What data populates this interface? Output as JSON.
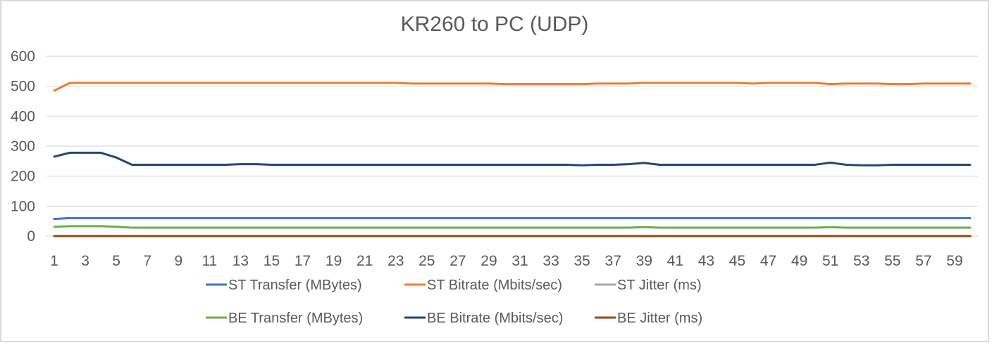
{
  "chart_data": {
    "type": "line",
    "title": "KR260 to PC (UDP)",
    "xlabel": "",
    "ylabel": "",
    "ylim": [
      0,
      600
    ],
    "yticks": [
      "0",
      "100",
      "200",
      "300",
      "400",
      "500",
      "600"
    ],
    "xticks": [
      "1",
      "3",
      "5",
      "7",
      "9",
      "11",
      "13",
      "15",
      "17",
      "19",
      "21",
      "23",
      "25",
      "27",
      "29",
      "31",
      "33",
      "35",
      "37",
      "39",
      "41",
      "43",
      "45",
      "47",
      "49",
      "51",
      "53",
      "55",
      "57",
      "59"
    ],
    "x": [
      1,
      2,
      3,
      4,
      5,
      6,
      7,
      8,
      9,
      10,
      11,
      12,
      13,
      14,
      15,
      16,
      17,
      18,
      19,
      20,
      21,
      22,
      23,
      24,
      25,
      26,
      27,
      28,
      29,
      30,
      31,
      32,
      33,
      34,
      35,
      36,
      37,
      38,
      39,
      40,
      41,
      42,
      43,
      44,
      45,
      46,
      47,
      48,
      49,
      50,
      51,
      52,
      53,
      54,
      55,
      56,
      57,
      58,
      59,
      60
    ],
    "grid": "horizontal",
    "legend_position": "bottom",
    "series": [
      {
        "name": "ST Transfer (MBytes)",
        "color": "#4472c4",
        "values": [
          57,
          60,
          60,
          60,
          60,
          60,
          60,
          60,
          60,
          60,
          60,
          60,
          60,
          60,
          60,
          60,
          60,
          60,
          60,
          60,
          60,
          60,
          60,
          60,
          60,
          60,
          60,
          60,
          60,
          60,
          60,
          60,
          60,
          60,
          60,
          60,
          60,
          60,
          60,
          60,
          60,
          60,
          60,
          60,
          60,
          60,
          60,
          60,
          60,
          60,
          60,
          60,
          60,
          60,
          60,
          60,
          60,
          60,
          60,
          60
        ]
      },
      {
        "name": "ST Bitrate (Mbits/sec)",
        "color": "#ed7d31",
        "values": [
          485,
          511,
          511,
          511,
          511,
          511,
          511,
          511,
          511,
          511,
          511,
          511,
          511,
          511,
          511,
          511,
          511,
          511,
          511,
          511,
          511,
          511,
          511,
          509,
          509,
          509,
          509,
          509,
          509,
          507,
          507,
          507,
          507,
          507,
          507,
          509,
          509,
          509,
          511,
          511,
          511,
          511,
          511,
          511,
          511,
          509,
          511,
          511,
          511,
          511,
          507,
          509,
          509,
          509,
          507,
          507,
          509,
          509,
          509,
          509
        ]
      },
      {
        "name": "ST Jitter (ms)",
        "color": "#a5a5a5",
        "values": [
          0.1,
          0.1,
          0.1,
          0.1,
          0.1,
          0.1,
          0.1,
          0.1,
          0.1,
          0.1,
          0.1,
          0.1,
          0.1,
          0.1,
          0.1,
          0.1,
          0.1,
          0.1,
          0.1,
          0.1,
          0.1,
          0.1,
          0.1,
          0.1,
          0.1,
          0.1,
          0.1,
          0.1,
          0.1,
          0.1,
          0.1,
          0.1,
          0.1,
          0.1,
          0.1,
          0.1,
          0.1,
          0.1,
          0.1,
          0.1,
          0.1,
          0.1,
          0.1,
          0.1,
          0.1,
          0.1,
          0.1,
          0.1,
          0.1,
          0.1,
          0.1,
          0.1,
          0.1,
          0.1,
          0.1,
          0.1,
          0.1,
          0.1,
          0.1,
          0.1
        ]
      },
      {
        "name": "BE Transfer (MBytes)",
        "color": "#70ad47",
        "values": [
          31,
          33,
          33,
          33,
          31,
          28,
          28,
          28,
          28,
          28,
          28,
          28,
          28,
          28,
          28,
          28,
          28,
          28,
          28,
          28,
          28,
          28,
          28,
          28,
          28,
          28,
          28,
          28,
          28,
          28,
          28,
          28,
          28,
          28,
          28,
          28,
          28,
          28,
          30,
          28,
          28,
          28,
          28,
          28,
          28,
          28,
          28,
          28,
          28,
          28,
          30,
          28,
          28,
          28,
          28,
          28,
          28,
          28,
          28,
          28
        ]
      },
      {
        "name": "BE Bitrate (Mbits/sec)",
        "color": "#264478",
        "values": [
          265,
          278,
          278,
          278,
          262,
          238,
          238,
          238,
          238,
          238,
          238,
          238,
          240,
          240,
          238,
          238,
          238,
          238,
          238,
          238,
          238,
          238,
          238,
          238,
          238,
          238,
          238,
          238,
          238,
          238,
          238,
          238,
          238,
          238,
          236,
          238,
          238,
          240,
          244,
          238,
          238,
          238,
          238,
          238,
          238,
          238,
          238,
          238,
          238,
          238,
          245,
          238,
          236,
          236,
          238,
          238,
          238,
          238,
          238,
          238
        ]
      },
      {
        "name": "BE Jitter (ms)",
        "color": "#9e480e",
        "values": [
          0.3,
          0.3,
          0.3,
          0.3,
          0.3,
          0.3,
          0.3,
          0.3,
          0.3,
          0.3,
          0.3,
          0.3,
          0.3,
          0.3,
          0.3,
          0.3,
          0.3,
          0.3,
          0.3,
          0.3,
          0.3,
          0.3,
          0.3,
          0.3,
          0.3,
          0.3,
          0.3,
          0.3,
          0.3,
          0.3,
          0.3,
          0.3,
          0.3,
          0.3,
          0.3,
          0.3,
          0.3,
          0.3,
          0.3,
          0.3,
          0.3,
          0.3,
          0.3,
          0.3,
          0.3,
          0.3,
          0.3,
          0.3,
          0.3,
          0.3,
          0.3,
          0.3,
          0.3,
          0.3,
          0.3,
          0.3,
          0.3,
          0.3,
          0.3,
          0.3
        ]
      }
    ],
    "legend_rows": [
      [
        "ST Transfer (MBytes)",
        "ST Bitrate (Mbits/sec)",
        "ST Jitter (ms)"
      ],
      [
        "BE Transfer (MBytes)",
        "BE Bitrate (Mbits/sec)",
        "BE Jitter (ms)"
      ]
    ]
  }
}
